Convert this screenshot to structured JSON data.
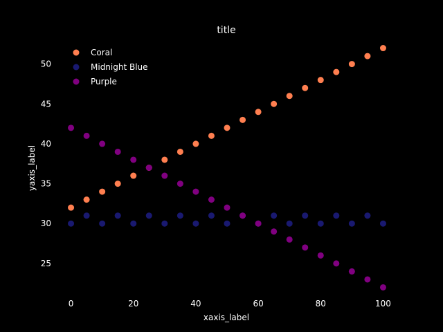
{
  "chart_data": {
    "type": "scatter",
    "title": "title",
    "xlabel": "xaxis_label",
    "ylabel": "yaxis_label",
    "xlim": [
      -5,
      105
    ],
    "ylim": [
      21,
      53
    ],
    "xticks": [
      0,
      20,
      40,
      60,
      80,
      100
    ],
    "yticks": [
      25,
      30,
      35,
      40,
      45,
      50
    ],
    "grid": false,
    "legend_position": "top-left",
    "series": [
      {
        "name": "Coral",
        "color": "#FF7F50",
        "x": [
          0,
          5,
          10,
          15,
          20,
          25,
          30,
          35,
          40,
          45,
          50,
          55,
          60,
          65,
          70,
          75,
          80,
          85,
          90,
          95,
          100
        ],
        "y": [
          32,
          33,
          34,
          35,
          36,
          37,
          38,
          39,
          40,
          41,
          42,
          43,
          44,
          45,
          46,
          47,
          48,
          49,
          50,
          51,
          52
        ]
      },
      {
        "name": "Midnight Blue",
        "color": "#191970",
        "x": [
          0,
          5,
          10,
          15,
          20,
          25,
          30,
          35,
          40,
          45,
          50,
          55,
          60,
          65,
          70,
          75,
          80,
          85,
          90,
          95,
          100
        ],
        "y": [
          30,
          31,
          30,
          31,
          30,
          31,
          30,
          31,
          30,
          31,
          30,
          31,
          30,
          31,
          30,
          31,
          30,
          31,
          30,
          31,
          30
        ]
      },
      {
        "name": "Purple",
        "color": "#800080",
        "x": [
          0,
          5,
          10,
          15,
          20,
          25,
          30,
          35,
          40,
          45,
          50,
          55,
          60,
          65,
          70,
          75,
          80,
          85,
          90,
          95,
          100
        ],
        "y": [
          42,
          41,
          40,
          39,
          38,
          37,
          36,
          35,
          34,
          33,
          32,
          31,
          30,
          29,
          28,
          27,
          26,
          25,
          24,
          23,
          22
        ]
      }
    ]
  }
}
